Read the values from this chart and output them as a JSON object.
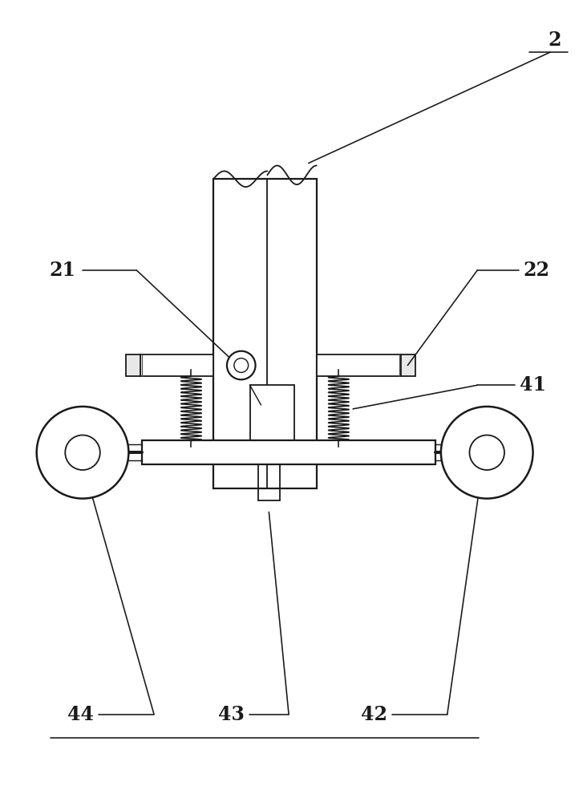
{
  "bg_color": "#ffffff",
  "line_color": "#1a1a1a",
  "lw": 1.3,
  "label_fontsize": 17,
  "figsize": [
    7.32,
    10.0
  ],
  "dpi": 100
}
